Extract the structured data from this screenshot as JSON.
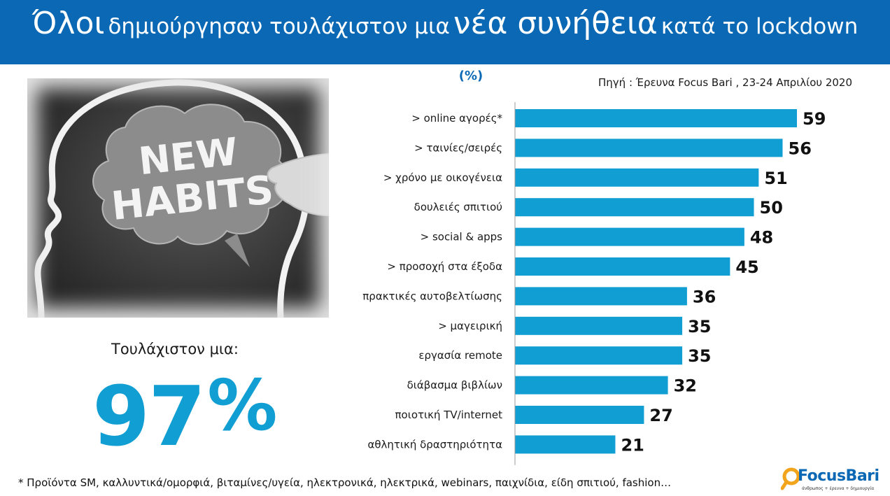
{
  "header": {
    "part1": "Όλοι",
    "part2": "δημιούργησαν τουλάχιστον μια",
    "part3": "νέα συνήθεια",
    "part4": "κατά το lockdown"
  },
  "image": {
    "icon": "head-brain-new-habits-image",
    "text_line1": "NEW",
    "text_line2": "HABITS"
  },
  "summary": {
    "label": "Τουλάχιστον μια:",
    "value": "97",
    "unit": "%"
  },
  "colors": {
    "header_bg": "#0a68b4",
    "bar": "#109ed3",
    "accent_text": "#109ed3",
    "unit_text": "#0a68b4"
  },
  "chart_data": {
    "type": "bar",
    "orientation": "horizontal",
    "unit": "(%)",
    "source": "Πηγή :  Έρευνα Focus Bari , 23-24 Απριλίου 2020",
    "categories": [
      "> online αγορές*",
      "> ταινίες/σειρές",
      "> χρόνο με οικογένεια",
      "δουλειές σπιτιού",
      "> social & apps",
      "> προσοχή στα έξοδα",
      "πρακτικές αυτοβελτίωσης",
      "> μαγειρική",
      "εργασία remote",
      "διάβασμα βιβλίων",
      "ποιοτική TV/internet",
      "αθλητική δραστηριότητα"
    ],
    "values": [
      59,
      56,
      51,
      50,
      48,
      45,
      36,
      35,
      35,
      32,
      27,
      21
    ],
    "xlim": [
      0,
      59
    ],
    "grid": false,
    "data_labels": true
  },
  "footnote": "* Προϊόντα SM, καλλυντικά/ομορφιά, βιταμίνες/υγεία, ηλεκτρονικά, ηλεκτρικά, webinars, παιχνίδια, είδη σπιτιού, fashion…",
  "logo": {
    "brand": "FocusBari",
    "tagline": "άνθρωπος + έρευνα + δημιουργία",
    "icon": "magnifier-icon"
  }
}
